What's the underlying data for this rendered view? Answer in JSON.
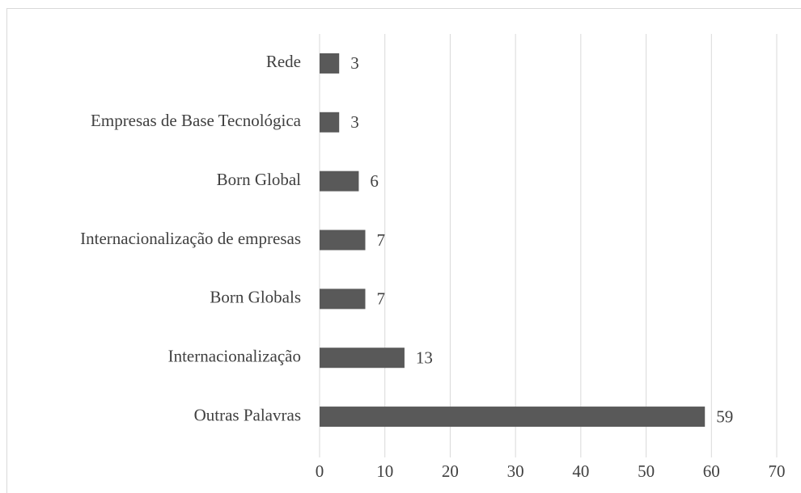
{
  "chart_data": {
    "type": "bar",
    "orientation": "horizontal",
    "categories": [
      "Rede",
      "Empresas de Base Tecnológica",
      "Born Global",
      "Internacionalização de empresas",
      "Born Globals",
      "Internacionalização",
      "Outras Palavras"
    ],
    "values": [
      3,
      3,
      6,
      7,
      7,
      13,
      59
    ],
    "color": "#595959",
    "xlim": [
      0,
      70
    ],
    "xticks": [
      0,
      10,
      20,
      30,
      40,
      50,
      60,
      70
    ],
    "grid": true
  }
}
